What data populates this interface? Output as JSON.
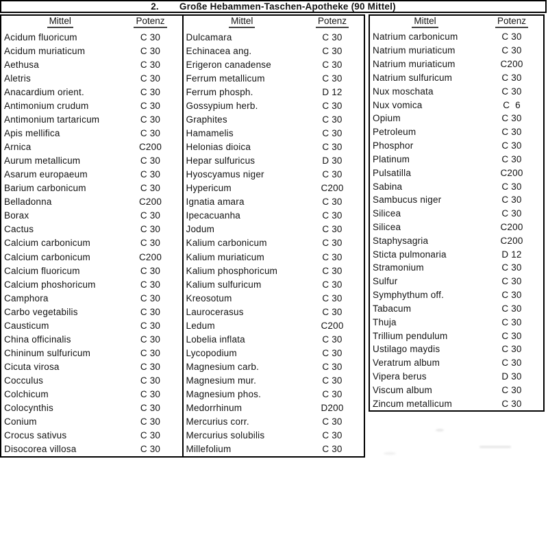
{
  "title": {
    "number": "2.",
    "text": "Große Hebammen-Taschen-Apotheke (90 Mittel)"
  },
  "column_headers": {
    "mittel": "Mittel",
    "potenz": "Potenz"
  },
  "columns": [
    {
      "entries": [
        {
          "name": "Acidum fluoricum",
          "potenz": "C 30"
        },
        {
          "name": "Acidum muriaticum",
          "potenz": "C 30"
        },
        {
          "name": "Aethusa",
          "potenz": "C 30"
        },
        {
          "name": "Aletris",
          "potenz": "C 30"
        },
        {
          "name": "Anacardium orient.",
          "potenz": "C 30"
        },
        {
          "name": "Antimonium crudum",
          "potenz": "C 30"
        },
        {
          "name": "Antimonium tartaricum",
          "potenz": "C 30"
        },
        {
          "name": "Apis mellifica",
          "potenz": "C 30"
        },
        {
          "name": "Arnica",
          "potenz": "C200"
        },
        {
          "name": "Aurum metallicum",
          "potenz": "C 30"
        },
        {
          "name": "Asarum europaeum",
          "potenz": "C 30"
        },
        {
          "name": "Barium carbonicum",
          "potenz": "C 30"
        },
        {
          "name": "Belladonna",
          "potenz": "C200"
        },
        {
          "name": "Borax",
          "potenz": "C 30"
        },
        {
          "name": "Cactus",
          "potenz": "C 30"
        },
        {
          "name": "Calcium carbonicum",
          "potenz": "C 30"
        },
        {
          "name": "Calcium carbonicum",
          "potenz": "C200"
        },
        {
          "name": "Calcium fluoricum",
          "potenz": "C 30"
        },
        {
          "name": "Calcium phoshoricum",
          "potenz": "C 30"
        },
        {
          "name": "Camphora",
          "potenz": "C 30"
        },
        {
          "name": "Carbo vegetabilis",
          "potenz": "C 30"
        },
        {
          "name": "Causticum",
          "potenz": "C 30"
        },
        {
          "name": "China officinalis",
          "potenz": "C 30"
        },
        {
          "name": "Chininum sulfuricum",
          "potenz": "C 30"
        },
        {
          "name": "Cicuta virosa",
          "potenz": "C 30"
        },
        {
          "name": "Cocculus",
          "potenz": "C 30"
        },
        {
          "name": "Colchicum",
          "potenz": "C 30"
        },
        {
          "name": "Colocynthis",
          "potenz": "C 30"
        },
        {
          "name": "Conium",
          "potenz": "C 30"
        },
        {
          "name": "Crocus sativus",
          "potenz": "C 30"
        },
        {
          "name": "Disocorea villosa",
          "potenz": "C 30"
        }
      ]
    },
    {
      "entries": [
        {
          "name": "Dulcamara",
          "potenz": "C 30"
        },
        {
          "name": "Echinacea ang.",
          "potenz": "C 30"
        },
        {
          "name": "Erigeron canadense",
          "potenz": "C 30"
        },
        {
          "name": "Ferrum metallicum",
          "potenz": "C 30"
        },
        {
          "name": "Ferrum phosph.",
          "potenz": "D 12"
        },
        {
          "name": "Gossypium herb.",
          "potenz": "C 30"
        },
        {
          "name": "Graphites",
          "potenz": "C 30"
        },
        {
          "name": "Hamamelis",
          "potenz": "C 30"
        },
        {
          "name": "Helonias dioica",
          "potenz": "C 30"
        },
        {
          "name": "Hepar sulfuricus",
          "potenz": "D 30"
        },
        {
          "name": "Hyoscyamus niger",
          "potenz": "C 30"
        },
        {
          "name": "Hypericum",
          "potenz": "C200"
        },
        {
          "name": "Ignatia amara",
          "potenz": "C 30"
        },
        {
          "name": "Ipecacuanha",
          "potenz": "C 30"
        },
        {
          "name": "Jodum",
          "potenz": "C 30"
        },
        {
          "name": "Kalium carbonicum",
          "potenz": "C 30"
        },
        {
          "name": "Kalium muriaticum",
          "potenz": "C 30"
        },
        {
          "name": "Kalium phosphoricum",
          "potenz": "C 30"
        },
        {
          "name": "Kalium sulfuricum",
          "potenz": "C 30"
        },
        {
          "name": "Kreosotum",
          "potenz": "C 30"
        },
        {
          "name": "Laurocerasus",
          "potenz": "C 30"
        },
        {
          "name": "Ledum",
          "potenz": "C200"
        },
        {
          "name": "Lobelia inflata",
          "potenz": "C 30"
        },
        {
          "name": "Lycopodium",
          "potenz": "C 30"
        },
        {
          "name": "Magnesium carb.",
          "potenz": "C 30"
        },
        {
          "name": "Magnesium mur.",
          "potenz": "C 30"
        },
        {
          "name": "Magnesium phos.",
          "potenz": "C 30"
        },
        {
          "name": "Medorrhinum",
          "potenz": "D200"
        },
        {
          "name": "Mercurius corr.",
          "potenz": "C 30"
        },
        {
          "name": "Mercurius solubilis",
          "potenz": "C 30"
        },
        {
          "name": "Millefolium",
          "potenz": "C 30"
        }
      ]
    },
    {
      "entries": [
        {
          "name": "Natrium carbonicum",
          "potenz": "C 30"
        },
        {
          "name": "Natrium muriaticum",
          "potenz": "C 30"
        },
        {
          "name": "Natrium muriaticum",
          "potenz": "C200"
        },
        {
          "name": "Natrium sulfuricum",
          "potenz": "C 30"
        },
        {
          "name": "Nux moschata",
          "potenz": "C 30"
        },
        {
          "name": "Nux vomica",
          "potenz": "C  6"
        },
        {
          "name": "Opium",
          "potenz": "C 30"
        },
        {
          "name": "Petroleum",
          "potenz": "C 30"
        },
        {
          "name": "Phosphor",
          "potenz": "C 30"
        },
        {
          "name": "Platinum",
          "potenz": "C 30"
        },
        {
          "name": "Pulsatilla",
          "potenz": "C200"
        },
        {
          "name": "Sabina",
          "potenz": "C 30"
        },
        {
          "name": "Sambucus niger",
          "potenz": "C 30"
        },
        {
          "name": "Silicea",
          "potenz": "C 30"
        },
        {
          "name": "Silicea",
          "potenz": "C200"
        },
        {
          "name": "Staphysagria",
          "potenz": "C200"
        },
        {
          "name": "Sticta pulmonaria",
          "potenz": "D 12"
        },
        {
          "name": "Stramonium",
          "potenz": "C 30"
        },
        {
          "name": "Sulfur",
          "potenz": "C 30"
        },
        {
          "name": "Symphythum off.",
          "potenz": "C 30"
        },
        {
          "name": "Tabacum",
          "potenz": "C 30"
        },
        {
          "name": "Thuja",
          "potenz": "C 30"
        },
        {
          "name": "Trillium pendulum",
          "potenz": "C 30"
        },
        {
          "name": "Ustilago maydis",
          "potenz": "C 30"
        },
        {
          "name": "Veratrum album",
          "potenz": "C 30"
        },
        {
          "name": "Vipera berus",
          "potenz": "D 30"
        },
        {
          "name": "Viscum album",
          "potenz": "C 30"
        },
        {
          "name": "Zincum metallicum",
          "potenz": "C 30"
        }
      ]
    }
  ]
}
